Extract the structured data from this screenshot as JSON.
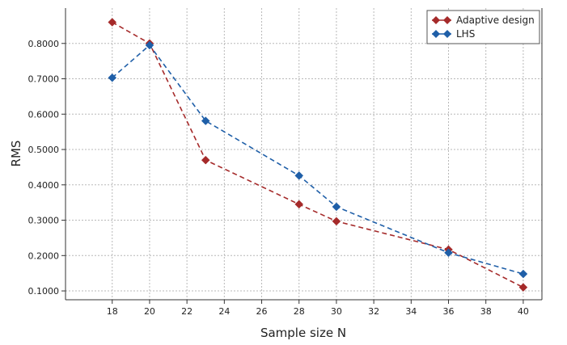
{
  "chart_data": {
    "type": "line",
    "title": "",
    "xlabel": "Sample size N",
    "ylabel": "RMS",
    "xlim": [
      15.5,
      41
    ],
    "ylim": [
      0.075,
      0.9
    ],
    "x_ticks": [
      18,
      20,
      22,
      24,
      26,
      28,
      30,
      32,
      34,
      36,
      38,
      40
    ],
    "y_ticks": [
      0.1,
      0.2,
      0.3,
      0.4,
      0.5,
      0.6,
      0.7,
      0.8
    ],
    "y_tick_labels": [
      "0.1000",
      "0.2000",
      "0.3000",
      "0.4000",
      "0.5000",
      "0.6000",
      "0.7000",
      "0.8000"
    ],
    "grid": true,
    "legend_position": "top-right",
    "series": [
      {
        "name": "Adaptive design",
        "color": "#a52a2a",
        "marker": "diamond",
        "line_style": "dashed",
        "x": [
          18,
          20,
          23,
          28,
          30,
          36,
          40
        ],
        "y": [
          0.86,
          0.8,
          0.47,
          0.345,
          0.297,
          0.217,
          0.11
        ]
      },
      {
        "name": "LHS",
        "color": "#1f5fa8",
        "marker": "diamond",
        "line_style": "dashed",
        "x": [
          18,
          20,
          23,
          28,
          30,
          36,
          40
        ],
        "y": [
          0.703,
          0.795,
          0.581,
          0.426,
          0.338,
          0.208,
          0.148
        ]
      }
    ]
  }
}
